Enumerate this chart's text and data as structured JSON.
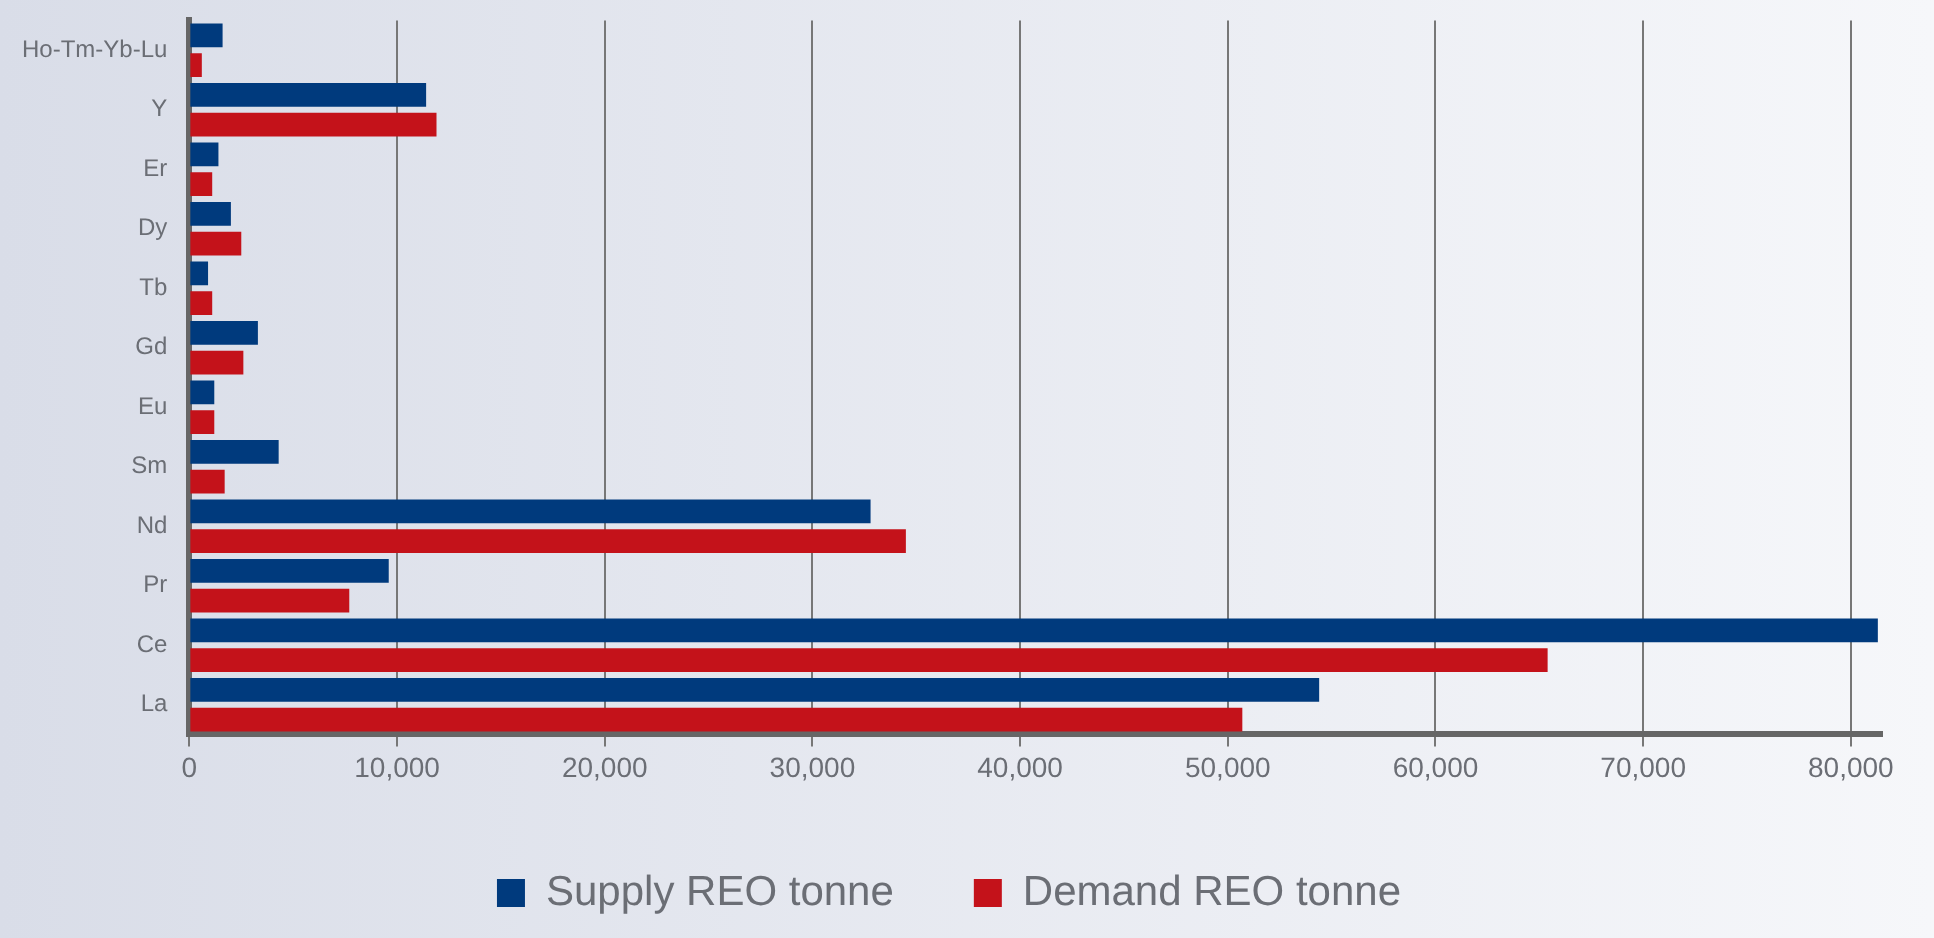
{
  "chart_data": {
    "type": "bar",
    "orientation": "horizontal",
    "categories": [
      "Ho-Tm-Yb-Lu",
      "Y",
      "Er",
      "Dy",
      "Tb",
      "Gd",
      "Eu",
      "Sm",
      "Nd",
      "Pr",
      "Ce",
      "La"
    ],
    "series": [
      {
        "name": "Supply REO tonne",
        "color": "#003a7d",
        "values": [
          1600,
          11400,
          1400,
          2000,
          900,
          3300,
          1200,
          4300,
          32800,
          9600,
          81300,
          54400
        ]
      },
      {
        "name": "Demand REO tonne",
        "color": "#c4121a",
        "values": [
          600,
          11900,
          1100,
          2500,
          1100,
          2600,
          1200,
          1700,
          34500,
          7700,
          65400,
          50700
        ]
      }
    ],
    "xlim": [
      0,
      81500
    ],
    "xticks": [
      0,
      {
        "value": 10000,
        "label": "10,000"
      },
      {
        "value": 20000,
        "label": "20,000"
      },
      {
        "value": 30000,
        "label": "30,000"
      },
      {
        "value": 40000,
        "label": "40,000"
      },
      {
        "value": 50000,
        "label": "50,000"
      },
      {
        "value": 60000,
        "label": "60,000"
      },
      {
        "value": 70000,
        "label": "70,000"
      },
      {
        "value": 80000,
        "label": "80,000"
      }
    ],
    "grid": "x",
    "legend": "bottom"
  }
}
